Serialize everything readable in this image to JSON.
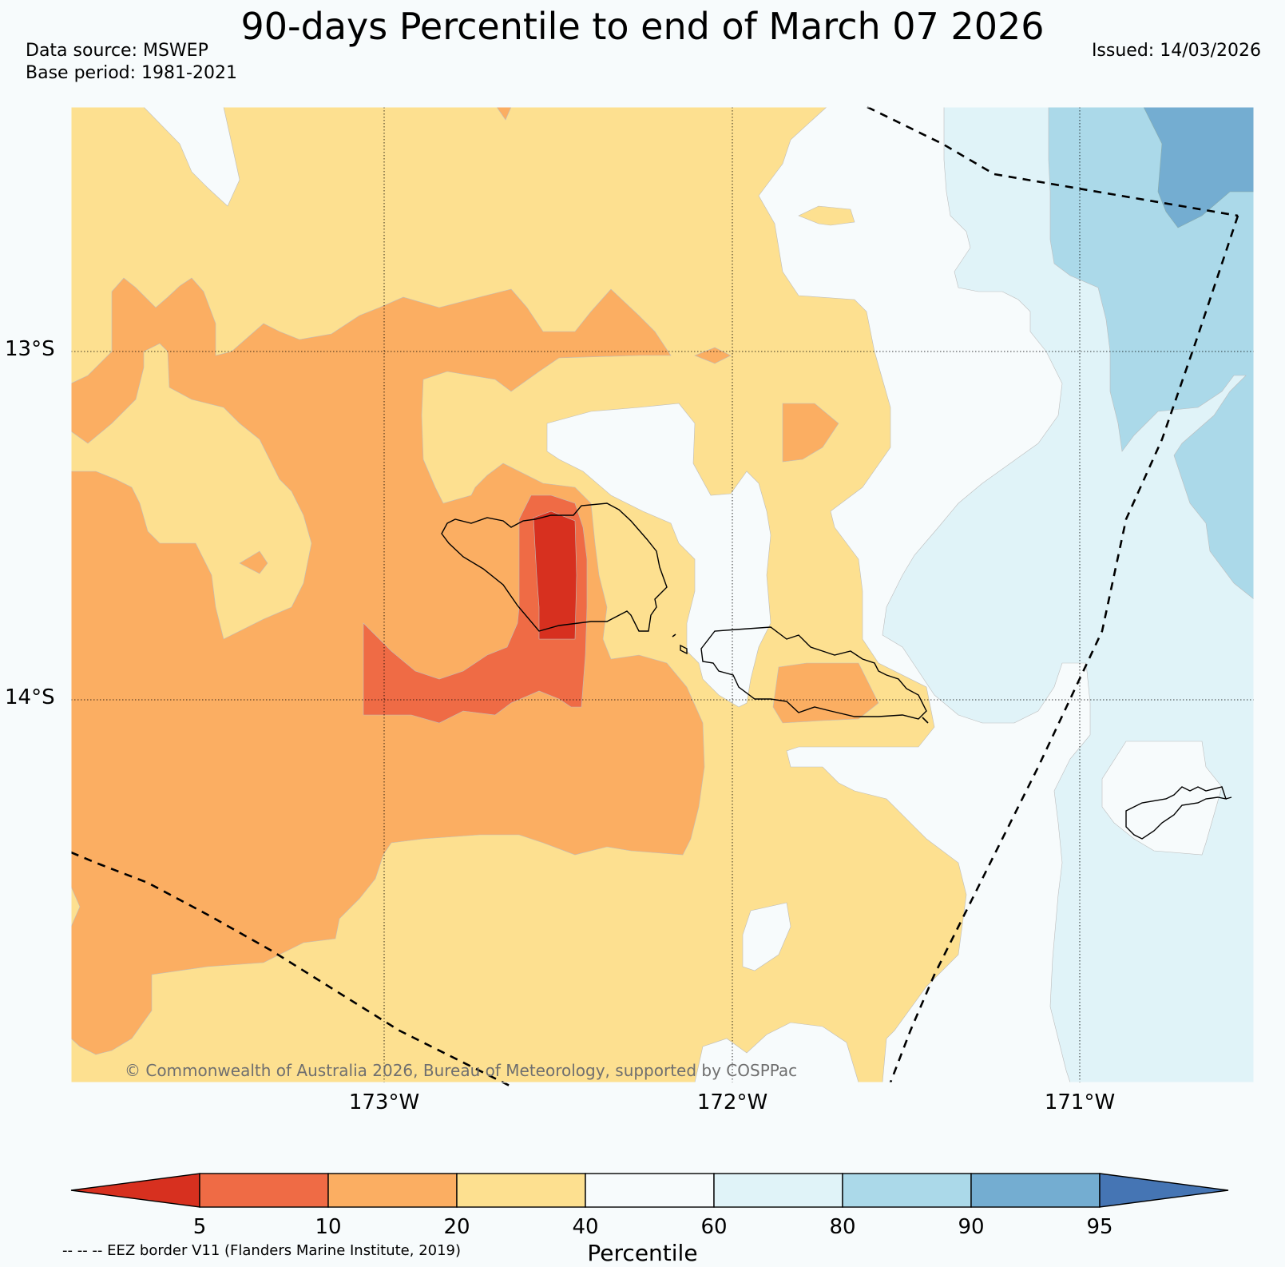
{
  "title": "90-days Percentile to end of March 07 2026",
  "data_source": "Data source: MSWEP",
  "base_period": "Base period: 1981-2021",
  "issued": "Issued: 14/03/2026",
  "lat_labels": [
    "13°S",
    "14°S"
  ],
  "lon_labels": [
    "173°W",
    "172°W",
    "171°W"
  ],
  "copyright": "© Commonwealth of Australia 2026, Bureau of Meteorology, supported by COSPPac",
  "colorbar": {
    "title": "Percentile",
    "ticks": [
      "5",
      "10",
      "20",
      "40",
      "60",
      "80",
      "90",
      "95"
    ],
    "colors": [
      "#d7301f",
      "#ef6b45",
      "#fbae62",
      "#fde090",
      "#f7fbfc",
      "#e0f3f8",
      "#abd9e9",
      "#74add1",
      "#4575b4"
    ]
  },
  "eez_note": "-- -- -- EEZ border V11 (Flanders Marine Institute, 2019)"
}
